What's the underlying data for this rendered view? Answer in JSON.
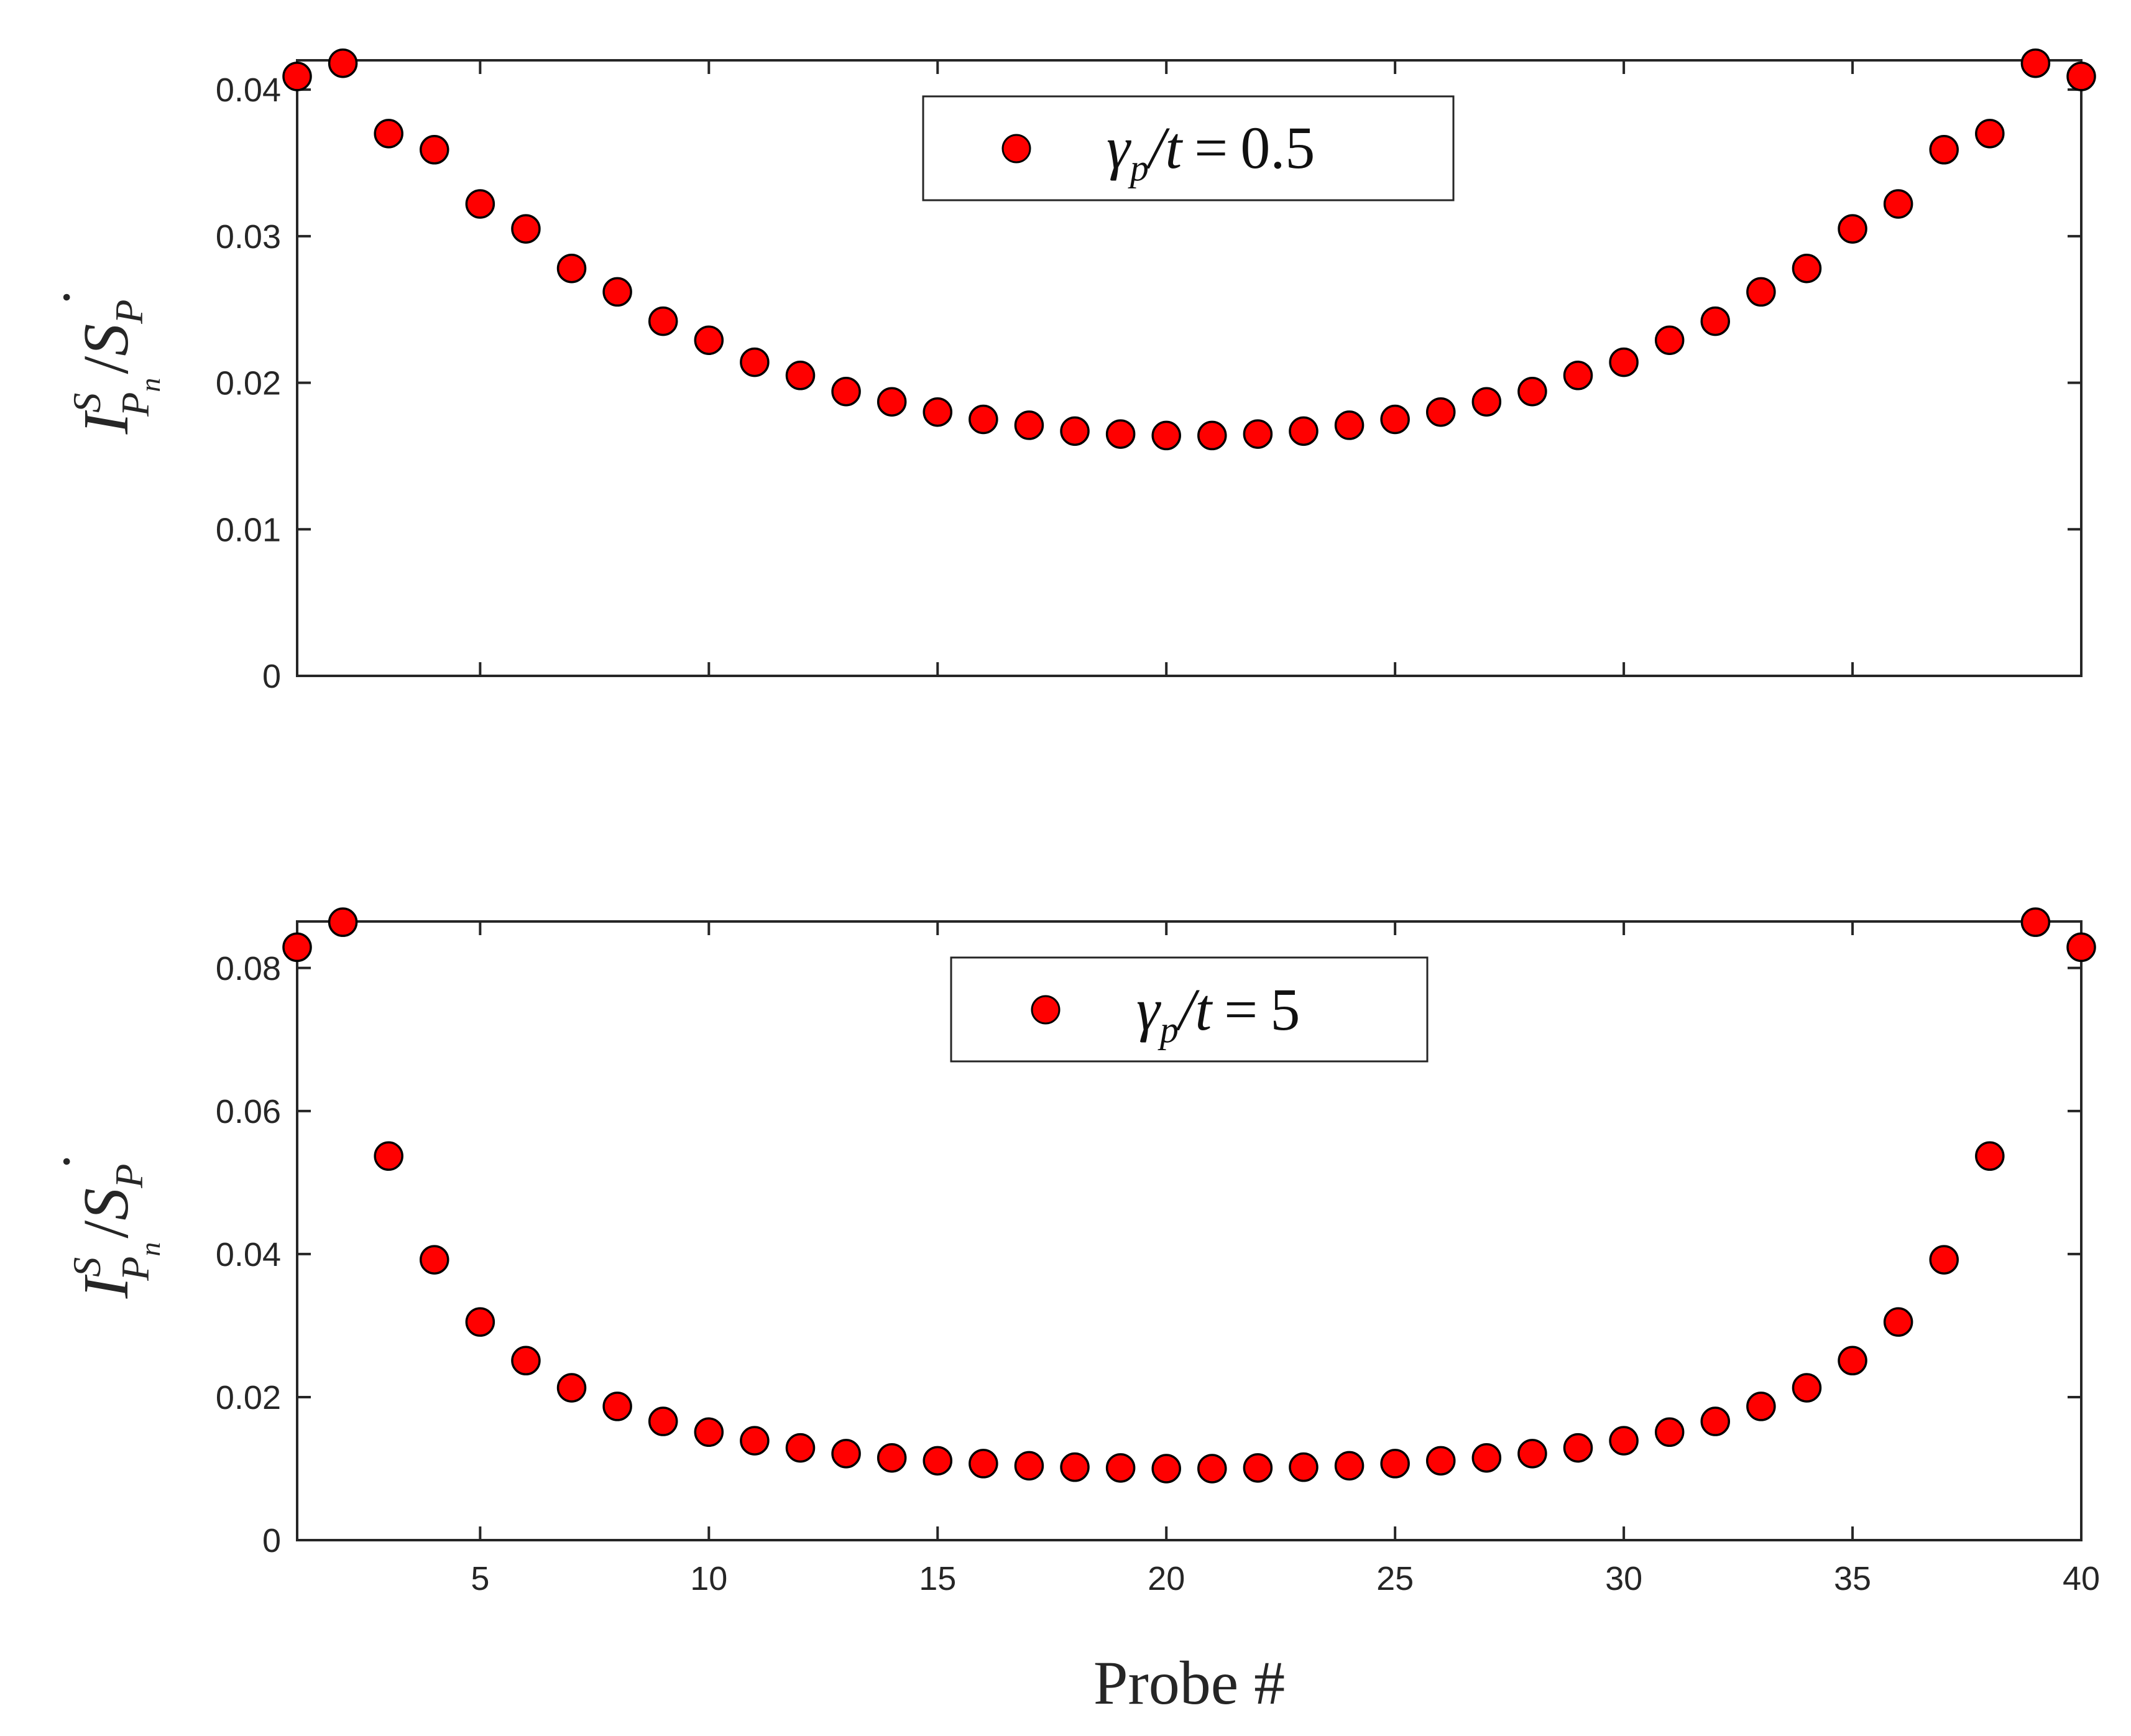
{
  "figure": {
    "xlabel": "Probe #",
    "ylabel": {
      "base": "I",
      "sup": "S",
      "sub": "P",
      "subsub": "n",
      "slash": "/",
      "dot": "·",
      "denom": "S",
      "denom_sub": "P"
    }
  },
  "colors": {
    "marker_fill": "#ff0000",
    "marker_edge": "#000000",
    "axis": "#262626"
  },
  "chart_data": [
    {
      "type": "scatter",
      "legend": {
        "label": "γp/t = 0.5",
        "symbol": "γ",
        "sub": "p",
        "rest": "/t",
        "eq": "=",
        "value": "0.5",
        "placement": "top-center"
      },
      "xlim": [
        1,
        40
      ],
      "ylim": [
        0,
        0.042
      ],
      "xticks": [
        5,
        10,
        15,
        20,
        25,
        30,
        35,
        40
      ],
      "xtick_labels_shown": false,
      "yticks": [
        0,
        0.01,
        0.02,
        0.03,
        0.04
      ],
      "ytick_labels": [
        "0",
        "0.01",
        "0.02",
        "0.03",
        "0.04"
      ],
      "grid": false,
      "series": [
        {
          "name": "γp/t = 0.5",
          "x": [
            1,
            2,
            3,
            4,
            5,
            6,
            7,
            8,
            9,
            10,
            11,
            12,
            13,
            14,
            15,
            16,
            17,
            18,
            19,
            20,
            21,
            22,
            23,
            24,
            25,
            26,
            27,
            28,
            29,
            30,
            31,
            32,
            33,
            34,
            35,
            36,
            37,
            38,
            39,
            40
          ],
          "y": [
            0.0409,
            0.0418,
            0.037,
            0.0359,
            0.0322,
            0.0305,
            0.0278,
            0.0262,
            0.0242,
            0.0229,
            0.0214,
            0.0205,
            0.0194,
            0.0187,
            0.018,
            0.0175,
            0.0171,
            0.0167,
            0.0165,
            0.0164,
            0.0164,
            0.0165,
            0.0167,
            0.0171,
            0.0175,
            0.018,
            0.0187,
            0.0194,
            0.0205,
            0.0214,
            0.0229,
            0.0242,
            0.0262,
            0.0278,
            0.0305,
            0.0322,
            0.0359,
            0.037,
            0.0418,
            0.0409
          ]
        }
      ]
    },
    {
      "type": "scatter",
      "legend": {
        "label": "γp/t = 5",
        "symbol": "γ",
        "sub": "p",
        "rest": "/t",
        "eq": "=",
        "value": "5",
        "placement": "top-center"
      },
      "xlim": [
        1,
        40
      ],
      "ylim": [
        0,
        0.0865
      ],
      "xticks": [
        5,
        10,
        15,
        20,
        25,
        30,
        35,
        40
      ],
      "xtick_labels": [
        "5",
        "10",
        "15",
        "20",
        "25",
        "30",
        "35",
        "40"
      ],
      "yticks": [
        0,
        0.02,
        0.04,
        0.06,
        0.08
      ],
      "ytick_labels": [
        "0",
        "0.02",
        "0.04",
        "0.06",
        "0.08"
      ],
      "grid": false,
      "series": [
        {
          "name": "γp/t = 5",
          "x": [
            1,
            2,
            3,
            4,
            5,
            6,
            7,
            8,
            9,
            10,
            11,
            12,
            13,
            14,
            15,
            16,
            17,
            18,
            19,
            20,
            21,
            22,
            23,
            24,
            25,
            26,
            27,
            28,
            29,
            30,
            31,
            32,
            33,
            34,
            35,
            36,
            37,
            38,
            39,
            40
          ],
          "y": [
            0.0829,
            0.0864,
            0.0537,
            0.0392,
            0.0305,
            0.0251,
            0.0213,
            0.0187,
            0.0166,
            0.0151,
            0.0139,
            0.0129,
            0.0121,
            0.0115,
            0.0111,
            0.0107,
            0.0104,
            0.0102,
            0.0101,
            0.01,
            0.01,
            0.0101,
            0.0102,
            0.0104,
            0.0107,
            0.0111,
            0.0115,
            0.0121,
            0.0129,
            0.0139,
            0.0151,
            0.0166,
            0.0187,
            0.0213,
            0.0251,
            0.0305,
            0.0392,
            0.0537,
            0.0864,
            0.0829
          ]
        }
      ]
    }
  ]
}
